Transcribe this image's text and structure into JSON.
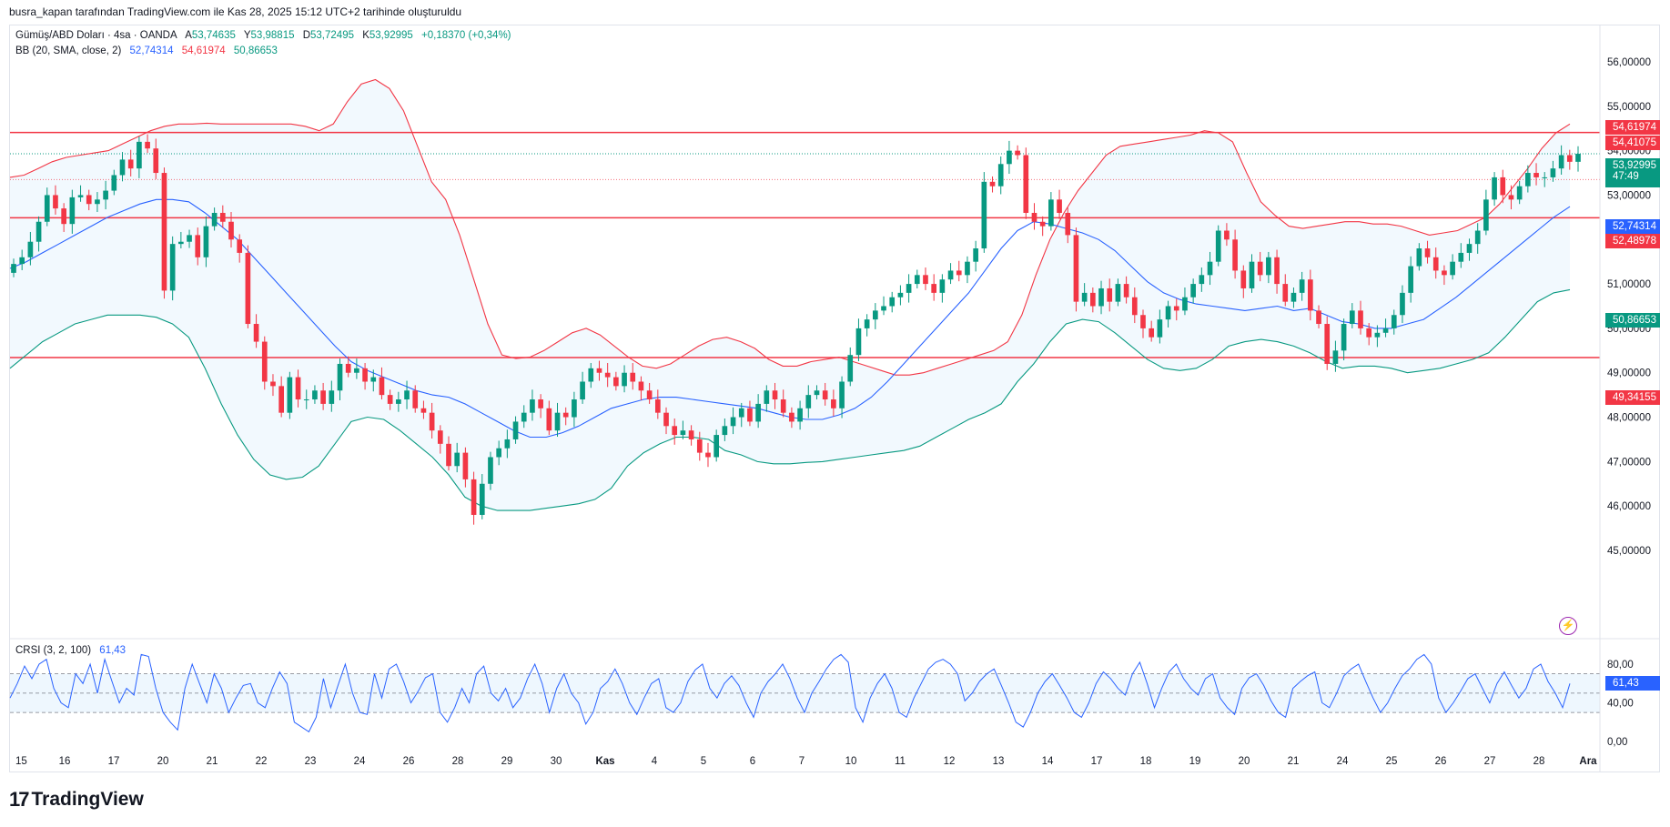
{
  "header_text": "busra_kapan tarafından TradingView.com ile Kas 28, 2025 15:12 UTC+2 tarihinde oluşturuldu",
  "legend": {
    "symbol": "Gümüş/ABD Doları · 4sa · OANDA",
    "open_label": "A",
    "open": "53,74635",
    "high_label": "Y",
    "high": "53,98815",
    "low_label": "D",
    "low": "53,72495",
    "close_label": "K",
    "close": "53,92995",
    "change": "+0,18370 (+0,34%)",
    "bb_label": "BB (20, SMA, close, 2)",
    "bb_basis": "52,74314",
    "bb_upper": "54,61974",
    "bb_lower": "50,86653",
    "crsi_label": "CRSI (3, 2, 100)",
    "crsi_value": "61,43"
  },
  "price_badges": {
    "upper": "54,61974",
    "res1": "54,41075",
    "last": "53,92995",
    "countdown": "47:49",
    "basis": "52,74314",
    "res2": "52,48978",
    "lower": "50,86653",
    "sup": "49,34155",
    "crsi": "61,43"
  },
  "brand": "TradingView",
  "colors": {
    "up": "#089981",
    "down": "#f23645",
    "basis": "#2962ff",
    "upper_band": "#f23645",
    "lower_band": "#089981",
    "hline": "#f23645",
    "crsi": "#2962ff",
    "band_fill": "#2196f3"
  },
  "chart_data": {
    "type": "candlestick",
    "title": "Gümüş/ABD Doları · 4sa · OANDA",
    "y_ticks": [
      "56,00000",
      "55,00000",
      "54,00000",
      "53,00000",
      "52,00000",
      "51,00000",
      "50,00000",
      "49,00000",
      "48,00000",
      "47,00000",
      "46,00000",
      "45,00000"
    ],
    "y_tick_values": [
      56,
      55,
      54,
      53,
      52,
      51,
      50,
      49,
      48,
      47,
      46,
      45
    ],
    "ylim": [
      44.6,
      56.6
    ],
    "x_labels": [
      "15",
      "16",
      "17",
      "20",
      "21",
      "22",
      "23",
      "24",
      "26",
      "28",
      "29",
      "30",
      "Kas",
      "4",
      "5",
      "6",
      "7",
      "10",
      "11",
      "12",
      "13",
      "14",
      "17",
      "18",
      "19",
      "20",
      "21",
      "24",
      "25",
      "26",
      "27",
      "28",
      "Ara"
    ],
    "horizontal_lines": [
      54.41075,
      52.48978,
      49.34155
    ],
    "last_price": 53.92995,
    "candles_close": [
      51.45,
      51.6,
      51.95,
      52.4,
      53.0,
      52.7,
      52.35,
      52.95,
      53.0,
      52.8,
      52.9,
      53.1,
      53.45,
      53.8,
      53.6,
      54.2,
      54.05,
      53.5,
      50.85,
      51.9,
      51.95,
      52.1,
      51.6,
      52.3,
      52.6,
      52.4,
      52.0,
      51.7,
      50.1,
      49.7,
      48.8,
      48.7,
      48.1,
      48.9,
      48.4,
      48.4,
      48.6,
      48.3,
      48.6,
      49.2,
      49.0,
      49.1,
      48.8,
      48.9,
      48.5,
      48.3,
      48.4,
      48.6,
      48.2,
      48.1,
      47.7,
      47.4,
      46.9,
      47.2,
      46.6,
      45.8,
      46.5,
      47.1,
      47.3,
      47.5,
      47.9,
      48.1,
      48.4,
      48.2,
      47.7,
      48.1,
      48.0,
      48.4,
      48.8,
      49.1,
      49.0,
      48.9,
      48.7,
      49.0,
      48.8,
      48.6,
      48.4,
      48.1,
      47.8,
      47.6,
      47.7,
      47.5,
      47.2,
      47.1,
      47.6,
      47.8,
      48.0,
      48.2,
      47.9,
      48.3,
      48.6,
      48.4,
      48.1,
      47.9,
      48.2,
      48.5,
      48.6,
      48.4,
      48.2,
      48.8,
      49.4,
      50.0,
      50.2,
      50.4,
      50.5,
      50.7,
      50.8,
      51.0,
      51.2,
      51.0,
      50.8,
      51.1,
      51.3,
      51.2,
      51.5,
      51.8,
      53.3,
      53.2,
      53.7,
      54.0,
      53.9,
      52.6,
      52.4,
      52.3,
      52.9,
      52.6,
      52.1,
      50.6,
      50.8,
      50.5,
      50.9,
      50.6,
      51.0,
      50.7,
      50.3,
      50.0,
      49.8,
      50.2,
      50.5,
      50.4,
      50.7,
      51.0,
      51.2,
      51.5,
      52.2,
      52.0,
      51.3,
      50.9,
      51.5,
      51.2,
      51.6,
      51.0,
      50.6,
      50.8,
      51.1,
      50.4,
      50.1,
      49.2,
      49.5,
      50.1,
      50.4,
      50.0,
      49.8,
      49.9,
      50.0,
      50.3,
      50.8,
      51.4,
      51.8,
      51.6,
      51.3,
      51.2,
      51.5,
      51.7,
      51.9,
      52.2,
      52.9,
      53.4,
      53.0,
      52.9,
      53.2,
      53.5,
      53.4,
      53.4,
      53.6,
      53.9,
      53.75,
      53.93
    ],
    "bb_upper": [
      53.4,
      53.45,
      53.6,
      53.75,
      53.85,
      53.9,
      53.95,
      54.0,
      54.15,
      54.3,
      54.45,
      54.55,
      54.6,
      54.6,
      54.62,
      54.6,
      54.6,
      54.6,
      54.6,
      54.6,
      54.6,
      54.55,
      54.45,
      54.6,
      55.1,
      55.5,
      55.6,
      55.4,
      54.9,
      54.1,
      53.3,
      52.9,
      52.1,
      51.1,
      50.1,
      49.4,
      49.32,
      49.35,
      49.5,
      49.7,
      49.9,
      50.0,
      49.85,
      49.6,
      49.35,
      49.15,
      49.1,
      49.2,
      49.4,
      49.6,
      49.75,
      49.8,
      49.7,
      49.55,
      49.3,
      49.15,
      49.15,
      49.25,
      49.3,
      49.35,
      49.25,
      49.15,
      49.05,
      48.95,
      48.95,
      49.0,
      49.1,
      49.2,
      49.3,
      49.4,
      49.5,
      49.7,
      50.3,
      51.2,
      52.0,
      52.6,
      53.1,
      53.5,
      53.9,
      54.1,
      54.15,
      54.2,
      54.25,
      54.3,
      54.35,
      54.45,
      54.4,
      54.2,
      53.5,
      52.85,
      52.55,
      52.3,
      52.25,
      52.3,
      52.35,
      52.4,
      52.4,
      52.35,
      52.35,
      52.3,
      52.2,
      52.1,
      52.15,
      52.2,
      52.35,
      52.5,
      52.8,
      53.2,
      53.6,
      54.05,
      54.4,
      54.6
    ],
    "bb_basis": [
      51.35,
      51.5,
      51.7,
      51.9,
      52.1,
      52.3,
      52.5,
      52.65,
      52.8,
      52.9,
      52.9,
      52.85,
      52.6,
      52.3,
      52.0,
      51.6,
      51.2,
      50.8,
      50.4,
      50.0,
      49.6,
      49.25,
      49.05,
      48.9,
      48.75,
      48.6,
      48.5,
      48.45,
      48.3,
      48.1,
      47.9,
      47.7,
      47.55,
      47.55,
      47.65,
      47.8,
      48.0,
      48.2,
      48.3,
      48.4,
      48.45,
      48.45,
      48.4,
      48.35,
      48.3,
      48.25,
      48.2,
      48.1,
      48.0,
      47.95,
      47.95,
      48.05,
      48.2,
      48.45,
      48.8,
      49.2,
      49.6,
      50.0,
      50.4,
      50.8,
      51.3,
      51.8,
      52.2,
      52.4,
      52.35,
      52.25,
      52.15,
      52.0,
      51.75,
      51.4,
      51.05,
      50.8,
      50.65,
      50.55,
      50.5,
      50.45,
      50.4,
      50.45,
      50.5,
      50.4,
      50.45,
      50.3,
      50.15,
      50.1,
      50.0,
      50.0,
      50.1,
      50.2,
      50.45,
      50.7,
      51.0,
      51.3,
      51.6,
      51.9,
      52.2,
      52.5,
      52.74
    ],
    "bb_lower": [
      49.1,
      49.4,
      49.7,
      49.9,
      50.1,
      50.2,
      50.3,
      50.3,
      50.3,
      50.25,
      50.1,
      49.8,
      49.1,
      48.3,
      47.6,
      47.05,
      46.7,
      46.6,
      46.65,
      46.9,
      47.4,
      47.9,
      48.0,
      47.95,
      47.7,
      47.4,
      47.1,
      46.7,
      46.2,
      46.0,
      45.9,
      45.9,
      45.9,
      45.95,
      46.0,
      46.05,
      46.15,
      46.4,
      46.9,
      47.2,
      47.4,
      47.55,
      47.55,
      47.5,
      47.25,
      47.15,
      47.0,
      46.95,
      46.95,
      46.98,
      47.0,
      47.05,
      47.1,
      47.15,
      47.2,
      47.25,
      47.35,
      47.55,
      47.75,
      47.95,
      48.1,
      48.3,
      48.8,
      49.2,
      49.7,
      50.1,
      50.2,
      50.15,
      49.9,
      49.6,
      49.3,
      49.1,
      49.05,
      49.1,
      49.3,
      49.6,
      49.7,
      49.75,
      49.7,
      49.6,
      49.45,
      49.25,
      49.1,
      49.15,
      49.15,
      49.1,
      49.0,
      49.05,
      49.1,
      49.2,
      49.3,
      49.45,
      49.8,
      50.2,
      50.6,
      50.8,
      50.87
    ],
    "crsi": {
      "ylim": [
        0,
        100
      ],
      "y_ticks": [
        "80,00",
        "40,00",
        "0,00"
      ],
      "y_tick_values": [
        80,
        40,
        0
      ],
      "band_upper": 70,
      "band_lower": 30,
      "values": [
        45,
        60,
        78,
        65,
        80,
        85,
        55,
        40,
        35,
        70,
        60,
        80,
        50,
        85,
        62,
        40,
        55,
        48,
        90,
        88,
        55,
        30,
        20,
        12,
        55,
        80,
        60,
        40,
        70,
        55,
        30,
        45,
        58,
        60,
        40,
        35,
        55,
        72,
        60,
        20,
        15,
        10,
        25,
        65,
        35,
        58,
        80,
        50,
        30,
        28,
        70,
        45,
        75,
        80,
        62,
        40,
        52,
        66,
        70,
        30,
        20,
        35,
        55,
        40,
        70,
        78,
        50,
        42,
        55,
        35,
        45,
        65,
        80,
        60,
        30,
        55,
        70,
        50,
        40,
        18,
        30,
        55,
        62,
        75,
        60,
        40,
        28,
        45,
        60,
        65,
        35,
        30,
        40,
        62,
        74,
        80,
        55,
        45,
        60,
        68,
        58,
        40,
        25,
        50,
        62,
        70,
        80,
        65,
        45,
        30,
        50,
        62,
        75,
        85,
        90,
        82,
        35,
        20,
        45,
        60,
        70,
        55,
        30,
        25,
        45,
        60,
        75,
        82,
        85,
        80,
        70,
        42,
        50,
        62,
        70,
        75,
        58,
        40,
        20,
        15,
        30,
        50,
        62,
        70,
        58,
        45,
        30,
        25,
        40,
        60,
        72,
        65,
        55,
        48,
        70,
        82,
        60,
        35,
        55,
        72,
        80,
        65,
        55,
        48,
        65,
        70,
        45,
        35,
        28,
        55,
        66,
        70,
        58,
        42,
        30,
        25,
        55,
        62,
        68,
        72,
        40,
        35,
        50,
        68,
        75,
        80,
        62,
        45,
        30,
        40,
        55,
        68,
        75,
        85,
        90,
        80,
        45,
        30,
        40,
        52,
        65,
        70,
        55,
        40,
        60,
        72,
        58,
        45,
        55,
        75,
        80,
        62,
        50,
        35,
        60
      ]
    }
  }
}
